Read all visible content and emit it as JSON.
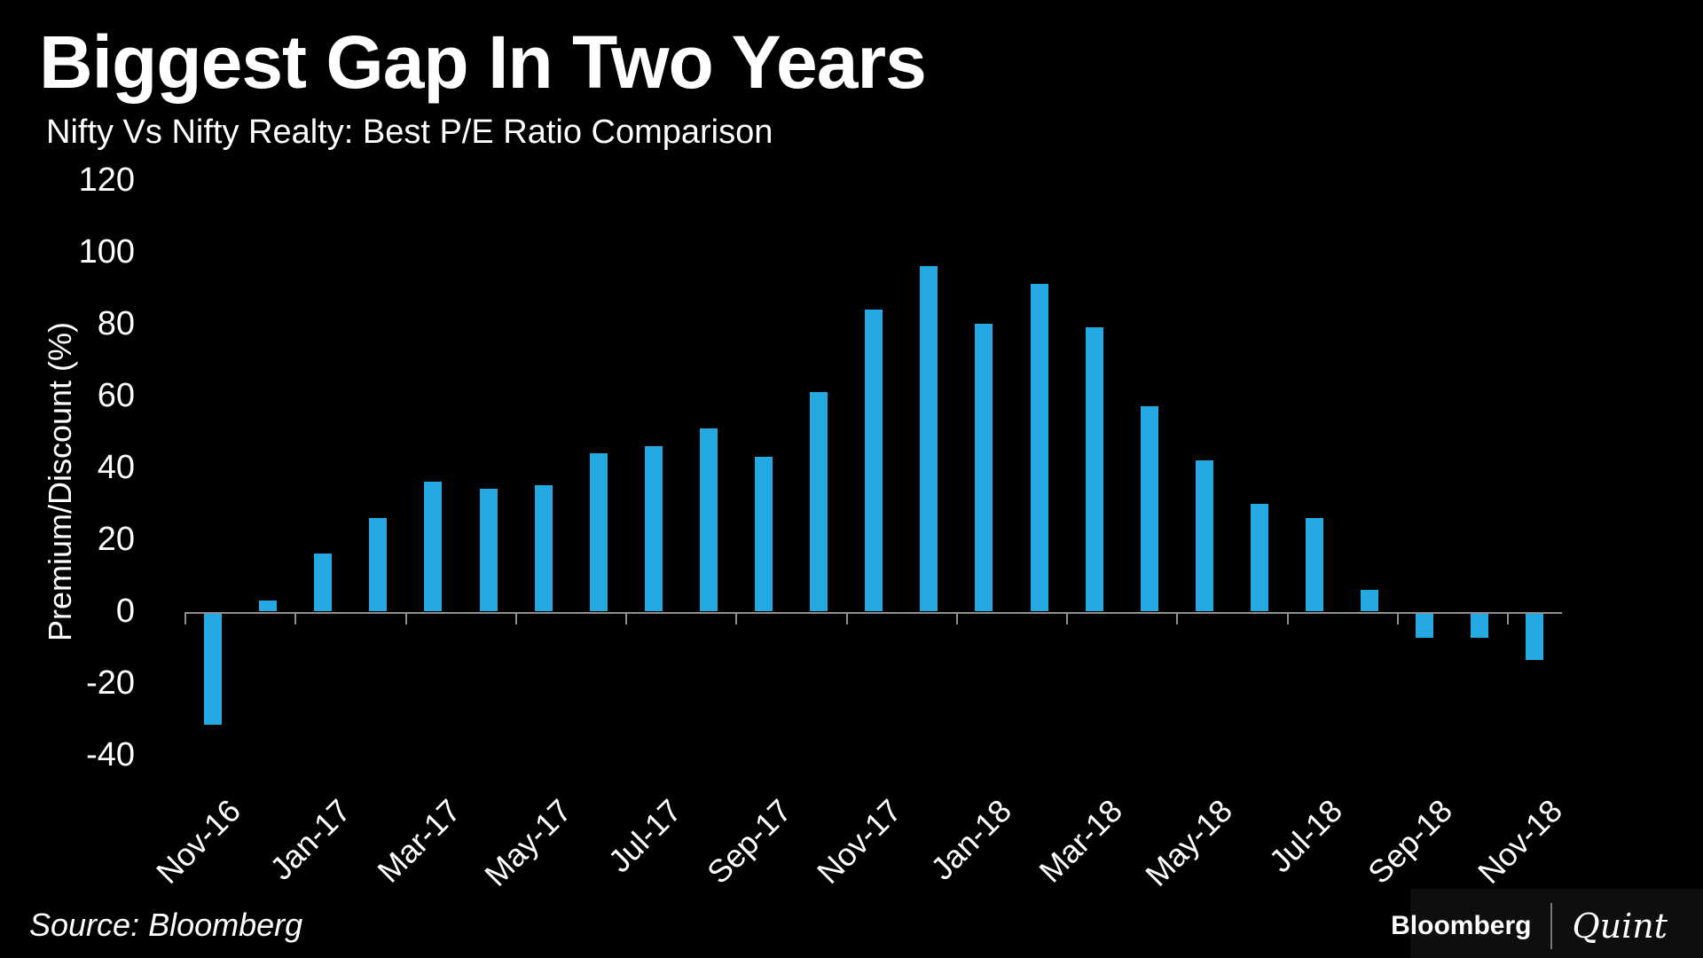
{
  "header": {
    "title": "Biggest Gap In Two Years",
    "subtitle": "Nifty Vs Nifty Realty: Best P/E Ratio Comparison"
  },
  "chart_data": {
    "type": "bar",
    "title": "Biggest Gap In Two Years",
    "subtitle": "Nifty Vs Nifty Realty: Best P/E Ratio Comparison",
    "xlabel": "",
    "ylabel": "Premium/Discount (%)",
    "ylim": [
      -40,
      120
    ],
    "yticks": [
      120,
      100,
      80,
      60,
      40,
      20,
      0,
      -20,
      -40
    ],
    "grid": false,
    "legend_position": "none",
    "categories": [
      "Nov-16",
      "Dec-16",
      "Jan-17",
      "Feb-17",
      "Mar-17",
      "Apr-17",
      "May-17",
      "Jun-17",
      "Jul-17",
      "Aug-17",
      "Sep-17",
      "Oct-17",
      "Nov-17",
      "Dec-17",
      "Jan-18",
      "Feb-18",
      "Mar-18",
      "Apr-18",
      "May-18",
      "Jun-18",
      "Jul-18",
      "Aug-18",
      "Sep-18",
      "Oct-18",
      "Nov-18"
    ],
    "values": [
      -31,
      3,
      16,
      26,
      36,
      34,
      35,
      44,
      46,
      51,
      43,
      61,
      84,
      96,
      80,
      91,
      79,
      57,
      42,
      30,
      26,
      6,
      -7,
      -7,
      -13
    ],
    "x_tick_labels": [
      "Nov-16",
      "Jan-17",
      "Mar-17",
      "May-17",
      "Jul-17",
      "Sep-17",
      "Nov-17",
      "Jan-18",
      "Mar-18",
      "May-18",
      "Jul-18",
      "Sep-18",
      "Nov-18"
    ],
    "bar_color": "#25A9E2",
    "axis_color": "#8F8F8F",
    "text_color": "#FFFFFF",
    "background_color": "#000000"
  },
  "footer": {
    "source": "Source: Bloomberg",
    "logo": {
      "primary": "Bloomberg",
      "separator": "|",
      "secondary": "Quint"
    }
  }
}
